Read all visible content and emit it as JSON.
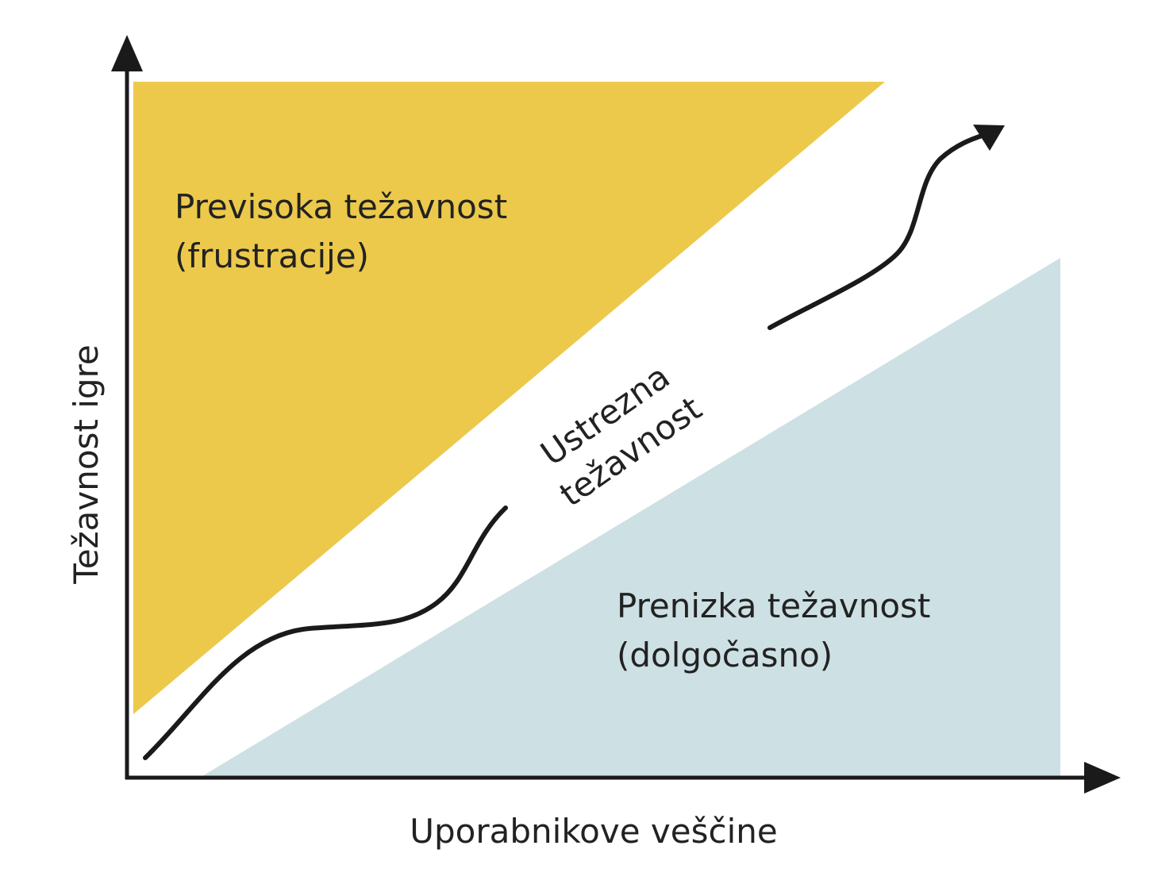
{
  "diagram": {
    "axes": {
      "x_label": "Uporabnikove veščine",
      "y_label": "Težavnost igre"
    },
    "zones": {
      "too_hard": {
        "line1": "Previsoka težavnost",
        "line2": "(frustracije)",
        "color": "#ecc94b"
      },
      "optimal": {
        "line1": "Ustrezna",
        "line2": "težavnost",
        "color": "#ffffff"
      },
      "too_easy": {
        "line1": "Prenizka težavnost",
        "line2": "(dolgočasno)",
        "color": "#cde0e4"
      }
    },
    "colors": {
      "axis": "#1a1a1a",
      "path": "#1a1a1a",
      "text": "#222222"
    }
  }
}
